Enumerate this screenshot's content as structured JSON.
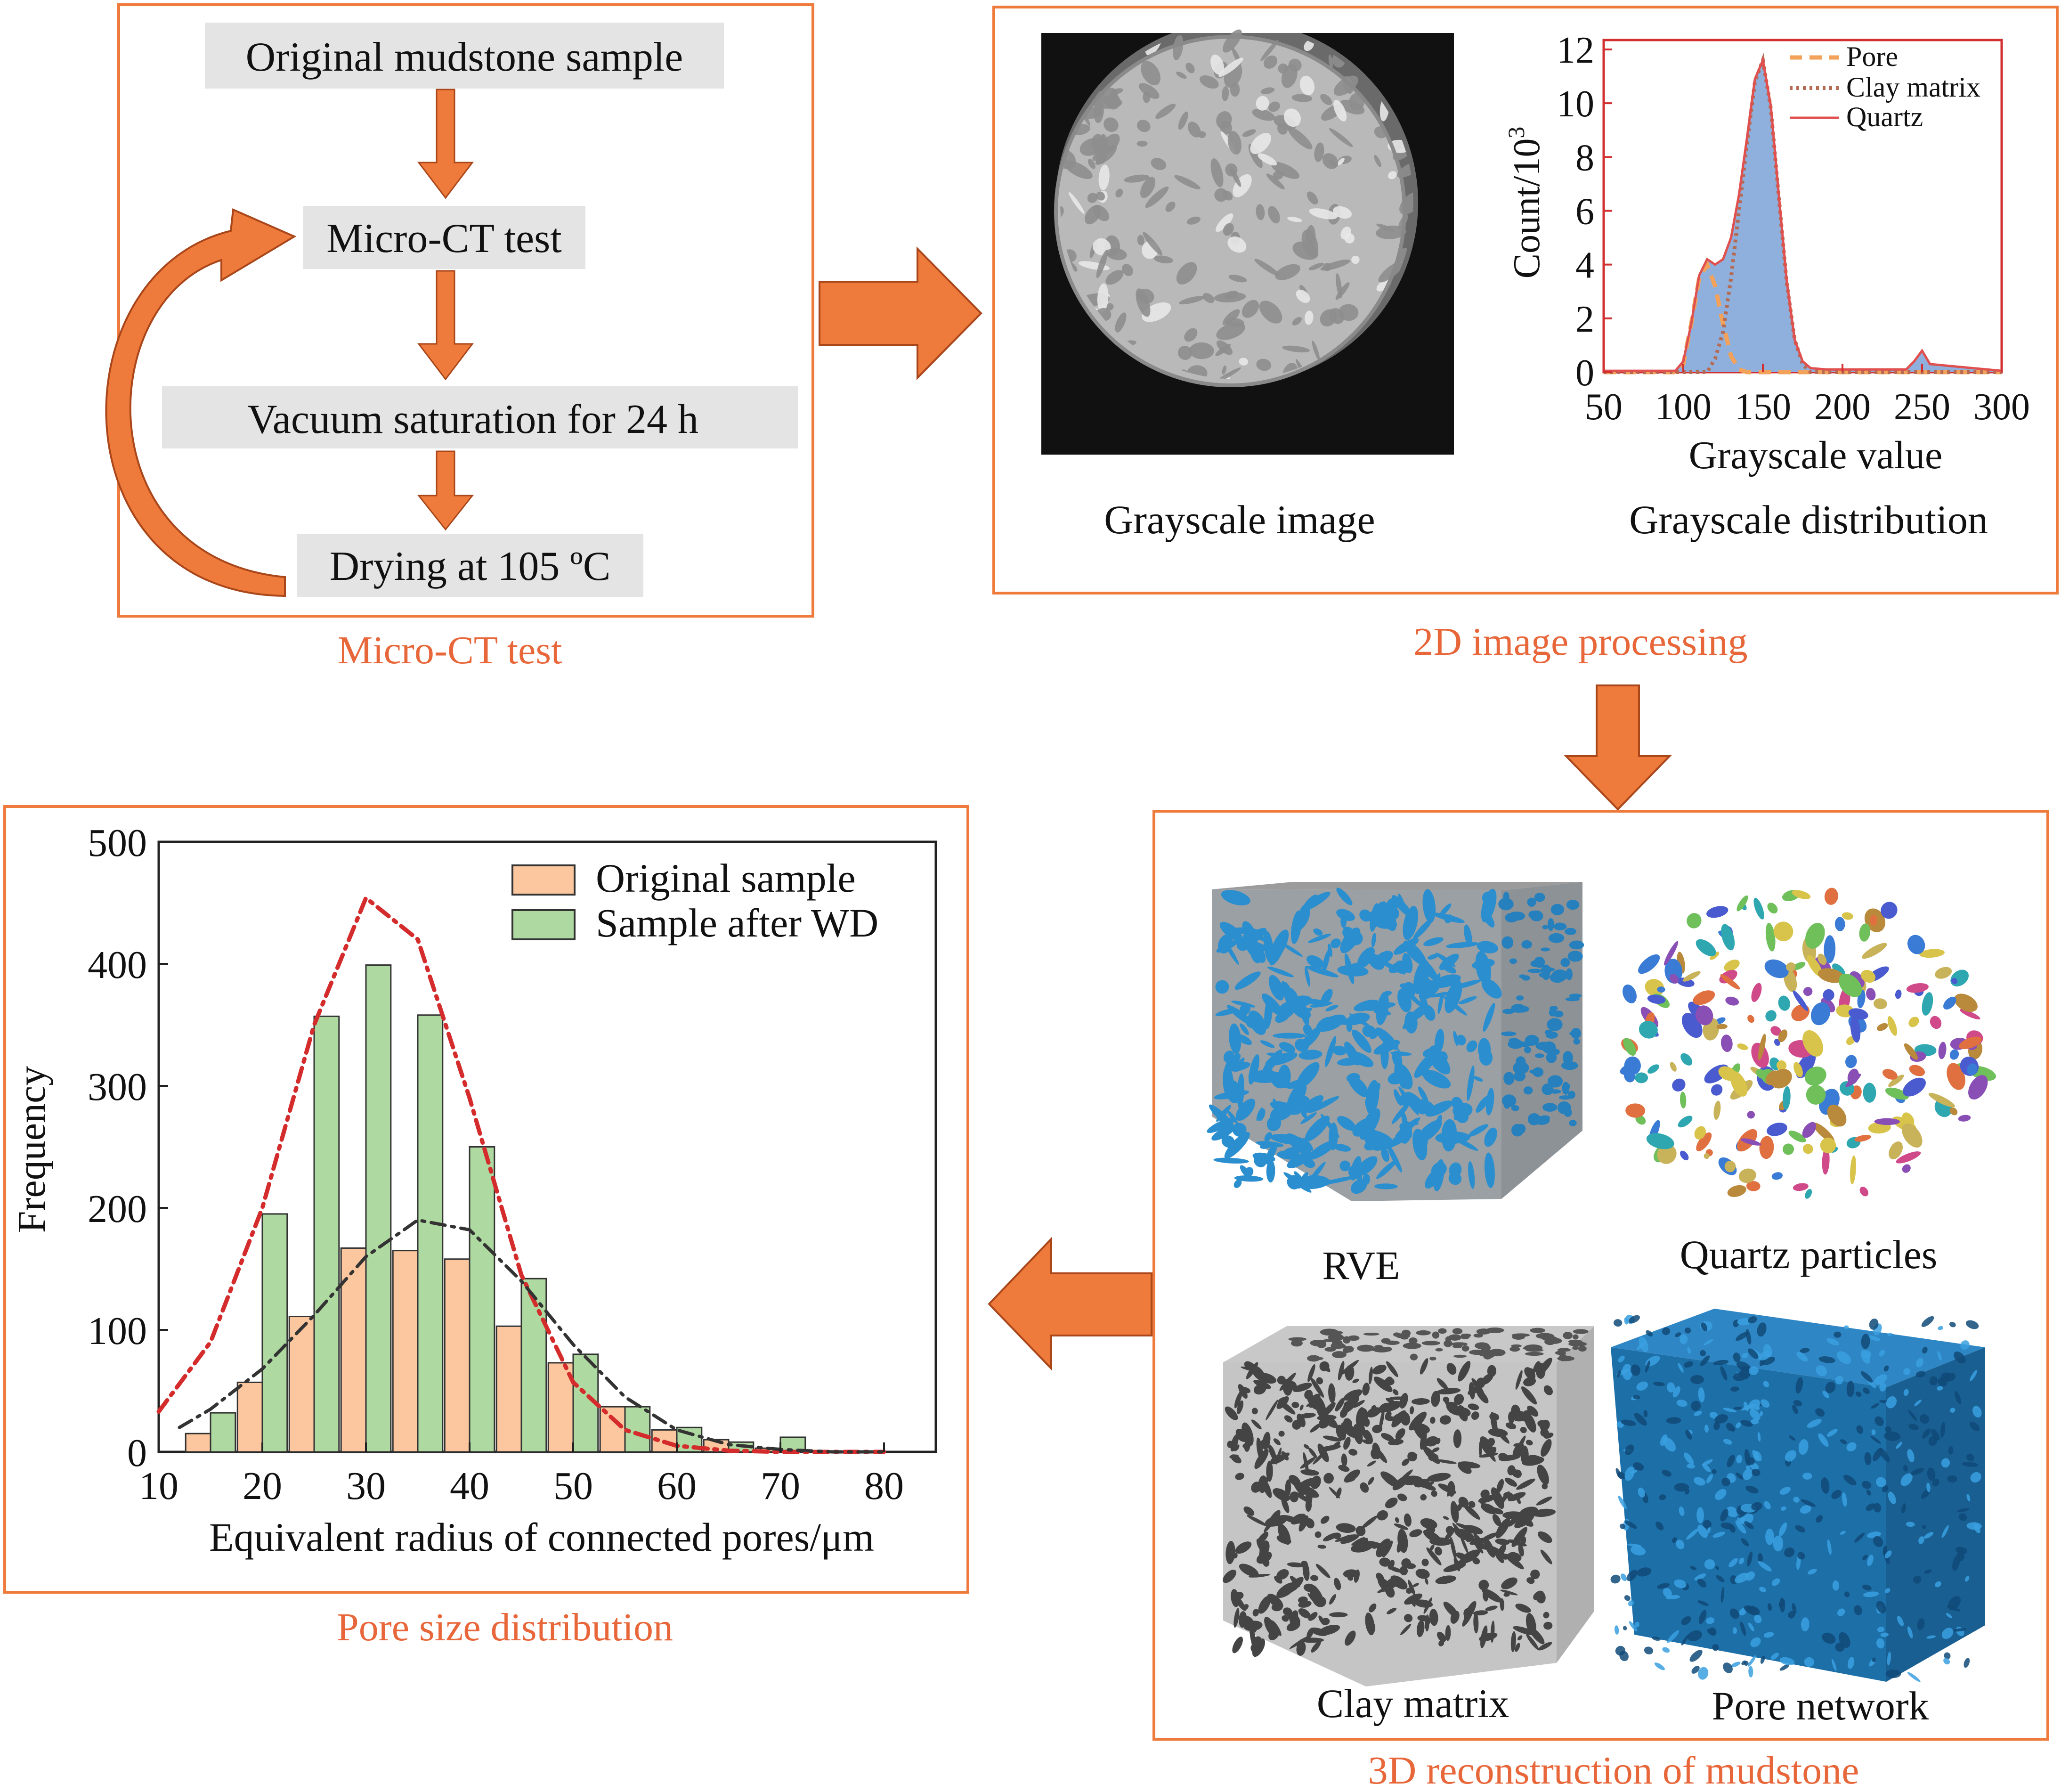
{
  "colors": {
    "accent_orange": "#ee7a3b",
    "caption_orange": "#e8673a",
    "box_gray": "#e4e4e4",
    "hist_blue": "#8fb0dc",
    "bar_original": "#fcc79e",
    "bar_wd": "#aed9a0",
    "curve_red": "#d42c2c"
  },
  "flow": {
    "caption": "Micro-CT test",
    "steps": [
      "Original mudstone sample",
      "Micro-CT test",
      "Vacuum saturation for 24 h",
      "Drying at 105 ºC"
    ]
  },
  "image_processing": {
    "caption": "2D image processing",
    "grayscale_image_label": "Grayscale image",
    "distribution_label": "Grayscale distribution"
  },
  "reconstruction": {
    "caption": "3D reconstruction of mudstone",
    "labels": [
      "RVE",
      "Quartz particles",
      "Clay matrix",
      "Pore network"
    ]
  },
  "pore_caption": "Pore size distribution",
  "chart_data": [
    {
      "type": "area",
      "title": "",
      "xlabel": "Grayscale value",
      "ylabel": "Count/10",
      "ylabel_sup": "3",
      "xlim": [
        50,
        300
      ],
      "ylim": [
        0,
        12
      ],
      "x_ticks": [
        "50",
        "100",
        "150",
        "200",
        "250",
        "300"
      ],
      "y_ticks": [
        "0",
        "2",
        "4",
        "6",
        "8",
        "10",
        "12"
      ],
      "legend": [
        "Pore",
        "Clay matrix",
        "Quartz"
      ],
      "legend_position": "top-right",
      "series": [
        {
          "name": "Pore",
          "style": "dashed",
          "x": [
            50,
            95,
            100,
            105,
            110,
            115,
            120,
            125,
            130,
            135,
            140,
            300
          ],
          "y": [
            0,
            0,
            0.3,
            1.8,
            3.5,
            4.0,
            3.2,
            1.8,
            0.6,
            0.1,
            0,
            0
          ]
        },
        {
          "name": "Clay matrix",
          "style": "dotted",
          "x": [
            50,
            115,
            120,
            125,
            130,
            135,
            140,
            145,
            150,
            155,
            160,
            165,
            170,
            175,
            180,
            300
          ],
          "y": [
            0,
            0,
            0.5,
            1.5,
            3.5,
            6.0,
            8.5,
            10.8,
            11.6,
            9.8,
            6.5,
            3.3,
            1.2,
            0.3,
            0,
            0
          ]
        },
        {
          "name": "Quartz",
          "style": "solid",
          "x": [
            50,
            95,
            100,
            105,
            110,
            115,
            120,
            125,
            130,
            135,
            140,
            145,
            150,
            155,
            160,
            165,
            170,
            175,
            180,
            190,
            200,
            240,
            245,
            250,
            255,
            300
          ],
          "y": [
            0.05,
            0.05,
            0.4,
            1.8,
            3.6,
            4.2,
            4.0,
            4.2,
            5.0,
            6.6,
            8.7,
            10.9,
            11.6,
            9.9,
            6.6,
            3.4,
            1.2,
            0.4,
            0.15,
            0.1,
            0.1,
            0.1,
            0.4,
            0.8,
            0.3,
            0.05
          ]
        }
      ]
    },
    {
      "type": "bar",
      "title": "",
      "xlabel": "Equivalent radius of connected pores/μm",
      "ylabel": "Frequency",
      "xlim": [
        10,
        85
      ],
      "ylim": [
        0,
        500
      ],
      "x_ticks": [
        "10",
        "20",
        "30",
        "40",
        "50",
        "60",
        "70",
        "80"
      ],
      "y_ticks": [
        "0",
        "100",
        "200",
        "300",
        "400",
        "500"
      ],
      "legend": [
        "Original sample",
        "Sample after WD"
      ],
      "legend_position": "top-right",
      "bar_width": 2.4,
      "series": [
        {
          "name": "Original sample",
          "x": [
            13.8,
            18.8,
            23.8,
            28.8,
            33.8,
            38.8,
            43.8,
            48.8,
            53.8,
            58.8,
            63.8,
            68.8
          ],
          "values": [
            15,
            57,
            111,
            167,
            165,
            158,
            103,
            73,
            37,
            18,
            10,
            3
          ]
        },
        {
          "name": "Sample after WD",
          "x": [
            16.2,
            21.2,
            26.2,
            31.2,
            36.2,
            41.2,
            46.2,
            51.2,
            56.2,
            61.2,
            66.2,
            71.2
          ],
          "values": [
            32,
            195,
            357,
            399,
            358,
            250,
            142,
            80,
            37,
            20,
            8,
            12
          ]
        }
      ],
      "fit_curves": [
        {
          "series": "Sample after WD",
          "style": "dash-dot",
          "color": "#d42c2c",
          "x": [
            10,
            15,
            20,
            25,
            30,
            35,
            40,
            45,
            50,
            55,
            60,
            65,
            70,
            75,
            80
          ],
          "y": [
            33,
            90,
            200,
            350,
            454,
            420,
            290,
            145,
            57,
            18,
            5,
            1,
            0,
            0,
            0
          ]
        },
        {
          "series": "Original sample",
          "style": "dash-dot",
          "color": "#333333",
          "x": [
            12,
            15,
            20,
            25,
            30,
            35,
            40,
            45,
            50,
            55,
            60,
            65,
            70,
            75,
            80
          ],
          "y": [
            20,
            35,
            68,
            112,
            160,
            190,
            182,
            140,
            88,
            45,
            18,
            6,
            2,
            0,
            0
          ]
        }
      ]
    }
  ]
}
